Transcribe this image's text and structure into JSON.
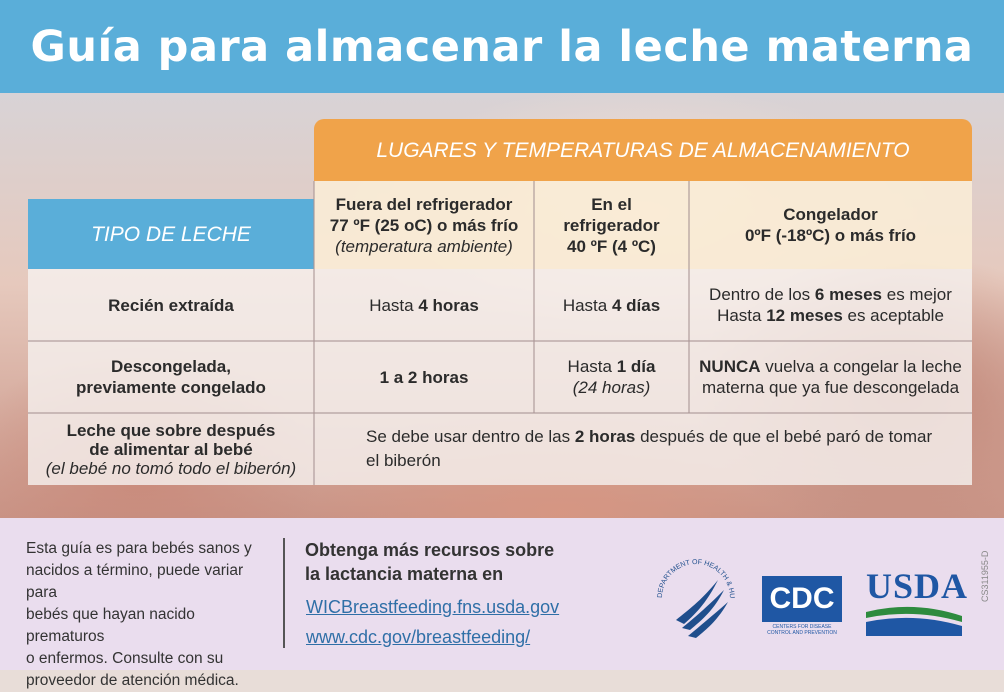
{
  "title": "Guía para almacenar la leche materna",
  "table": {
    "group_header": "LUGARES Y TEMPERATURAS DE ALMACENAMIENTO",
    "row_header_label": "TIPO DE LECHE",
    "columns": [
      {
        "line1": "Fuera del refrigerador",
        "line2": "77 ºF (25 oC) o más frío",
        "line3": "(temperatura ambiente)"
      },
      {
        "line1": "En el",
        "line2": "refrigerador",
        "line3": "40 ºF (4 ºC)"
      },
      {
        "line1": "Congelador",
        "line2": "0ºF (-18ºC) o más frío"
      }
    ],
    "rows": [
      {
        "type": "Recién extraída",
        "c1_pre": "Hasta ",
        "c1_bold": "4 horas",
        "c2_pre": "Hasta ",
        "c2_bold": "4 días",
        "c3a_pre": "Dentro de los ",
        "c3a_bold": "6 meses",
        "c3a_post": " es mejor",
        "c3b_pre": "Hasta ",
        "c3b_bold": "12 meses",
        "c3b_post": " es aceptable"
      },
      {
        "type_line1": "Descongelada,",
        "type_line2": "previamente congelado",
        "c1_bold": "1 a 2 horas",
        "c2_pre": "Hasta ",
        "c2_bold": "1 día",
        "c2_sub": "(24 horas)",
        "c3a_bold": "NUNCA",
        "c3a_post": " vuelva a congelar la leche",
        "c3b": "materna que ya fue descongelada"
      },
      {
        "type_line1": "Leche que sobre después",
        "type_line2": "de alimentar al bebé",
        "type_line3": "(el bebé no tomó todo el biberón)",
        "merged_pre": "Se debe usar dentro de las ",
        "merged_bold": "2 horas",
        "merged_post": " después de que el bebé paró de tomar",
        "merged_line2": "el biberón"
      }
    ]
  },
  "footer": {
    "left_lines": [
      "Esta guía es para bebés sanos y",
      "nacidos a término, puede variar para",
      "bebés que hayan nacido prematuros",
      "o enfermos. Consulte con su",
      "proveedor de atención médica."
    ],
    "resources_line1": "Obtenga más recursos sobre",
    "resources_line2": "la lactancia materna en",
    "link1": "WICBreastfeeding.fns.usda.gov",
    "link2": "www.cdc.gov/breastfeeding/",
    "hhs_seal_text": "DEPARTMENT OF HEALTH & HUMAN SERVICES · USA",
    "cdc_logo": "CDC",
    "cdc_subtitle_line1": "CENTERS FOR DISEASE",
    "cdc_subtitle_line2": "CONTROL AND PREVENTION",
    "usda_logo": "USDA",
    "code": "CS311955-D"
  },
  "colors": {
    "header_blue": "#5aaed9",
    "orange": "#f0a34a",
    "footer_lavender": "#eaddee",
    "link_blue": "#2f6fa7"
  }
}
